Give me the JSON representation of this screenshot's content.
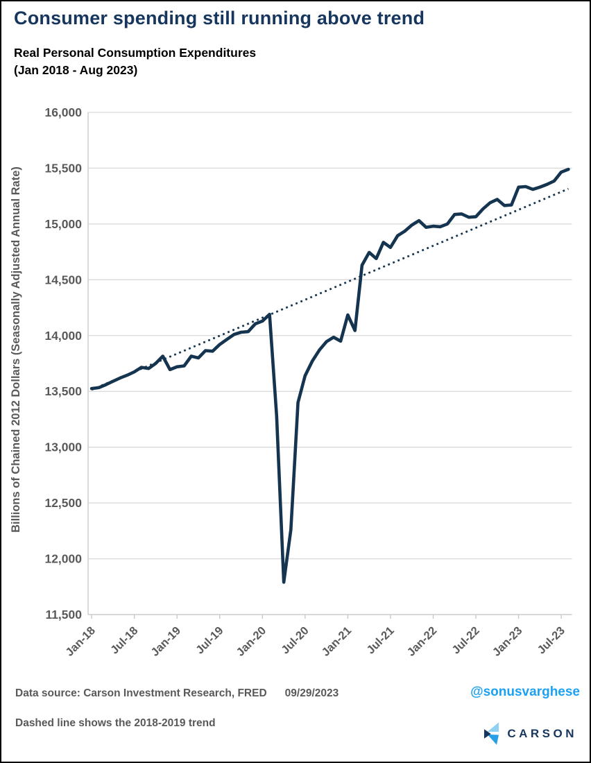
{
  "header": {
    "title": "Consumer spending still running above trend",
    "subtitle_line1": "Real Personal Consumption Expenditures",
    "subtitle_line2": "(Jan 2018 - Aug 2023)"
  },
  "footer": {
    "data_source": "Data source: Carson Investment Research, FRED",
    "date": "09/29/2023",
    "handle": "@sonusvarghese",
    "note": "Dashed line shows the 2018-2019 trend",
    "logo_text": "CARSON"
  },
  "colors": {
    "title": "#17365d",
    "line": "#14344f",
    "trend": "#14344f",
    "axis_text": "#595959",
    "gridline": "#d9d9d9",
    "axis_line": "#c6c6c6",
    "handle": "#1da1f2",
    "logo_navy": "#17365d",
    "logo_light_blue": "#8fd0f5",
    "logo_mid_blue": "#2b9fe6"
  },
  "chart_data": {
    "type": "line",
    "title": "Real Personal Consumption Expenditures (Jan 2018 - Aug 2023)",
    "ylabel": "Billions of Chained 2012 Dollars (Seasonally Adjusted Annual Rate)",
    "ylim": [
      11500,
      16000
    ],
    "y_tick_step": 500,
    "grid": "horizontal",
    "legend": "none",
    "x_tick_labels": [
      "Jan-18",
      "Jul-18",
      "Jan-19",
      "Jul-19",
      "Jan-20",
      "Jul-20",
      "Jan-21",
      "Jul-21",
      "Jan-22",
      "Jul-22",
      "Jan-23",
      "Jul-23"
    ],
    "x_tick_indices": [
      0,
      6,
      12,
      18,
      24,
      30,
      36,
      42,
      48,
      54,
      60,
      66
    ],
    "months": [
      "Jan-18",
      "Feb-18",
      "Mar-18",
      "Apr-18",
      "May-18",
      "Jun-18",
      "Jul-18",
      "Aug-18",
      "Sep-18",
      "Oct-18",
      "Nov-18",
      "Dec-18",
      "Jan-19",
      "Feb-19",
      "Mar-19",
      "Apr-19",
      "May-19",
      "Jun-19",
      "Jul-19",
      "Aug-19",
      "Sep-19",
      "Oct-19",
      "Nov-19",
      "Dec-19",
      "Jan-20",
      "Feb-20",
      "Mar-20",
      "Apr-20",
      "May-20",
      "Jun-20",
      "Jul-20",
      "Aug-20",
      "Sep-20",
      "Oct-20",
      "Nov-20",
      "Dec-20",
      "Jan-21",
      "Feb-21",
      "Mar-21",
      "Apr-21",
      "May-21",
      "Jun-21",
      "Jul-21",
      "Aug-21",
      "Sep-21",
      "Oct-21",
      "Nov-21",
      "Dec-21",
      "Jan-22",
      "Feb-22",
      "Mar-22",
      "Apr-22",
      "May-22",
      "Jun-22",
      "Jul-22",
      "Aug-22",
      "Sep-22",
      "Oct-22",
      "Nov-22",
      "Dec-22",
      "Jan-23",
      "Feb-23",
      "Mar-23",
      "Apr-23",
      "May-23",
      "Jun-23",
      "Jul-23",
      "Aug-23"
    ],
    "series": [
      {
        "name": "Real Personal Consumption Expenditures",
        "style": "solid",
        "values": [
          13525,
          13533,
          13560,
          13590,
          13620,
          13645,
          13675,
          13715,
          13705,
          13750,
          13815,
          13695,
          13720,
          13728,
          13815,
          13800,
          13865,
          13860,
          13920,
          13965,
          14010,
          14030,
          14035,
          14105,
          14130,
          14190,
          13280,
          11790,
          12260,
          13400,
          13640,
          13770,
          13870,
          13945,
          13985,
          13950,
          14185,
          14045,
          14630,
          14745,
          14690,
          14835,
          14790,
          14895,
          14935,
          14990,
          15030,
          14970,
          14980,
          14975,
          15000,
          15085,
          15090,
          15060,
          15065,
          15135,
          15190,
          15220,
          15165,
          15170,
          15330,
          15335,
          15310,
          15330,
          15355,
          15385,
          15465,
          15490
        ]
      },
      {
        "name": "2018-2019 trend",
        "style": "dotted",
        "endpoint_values": [
          13515,
          15315
        ]
      }
    ]
  }
}
